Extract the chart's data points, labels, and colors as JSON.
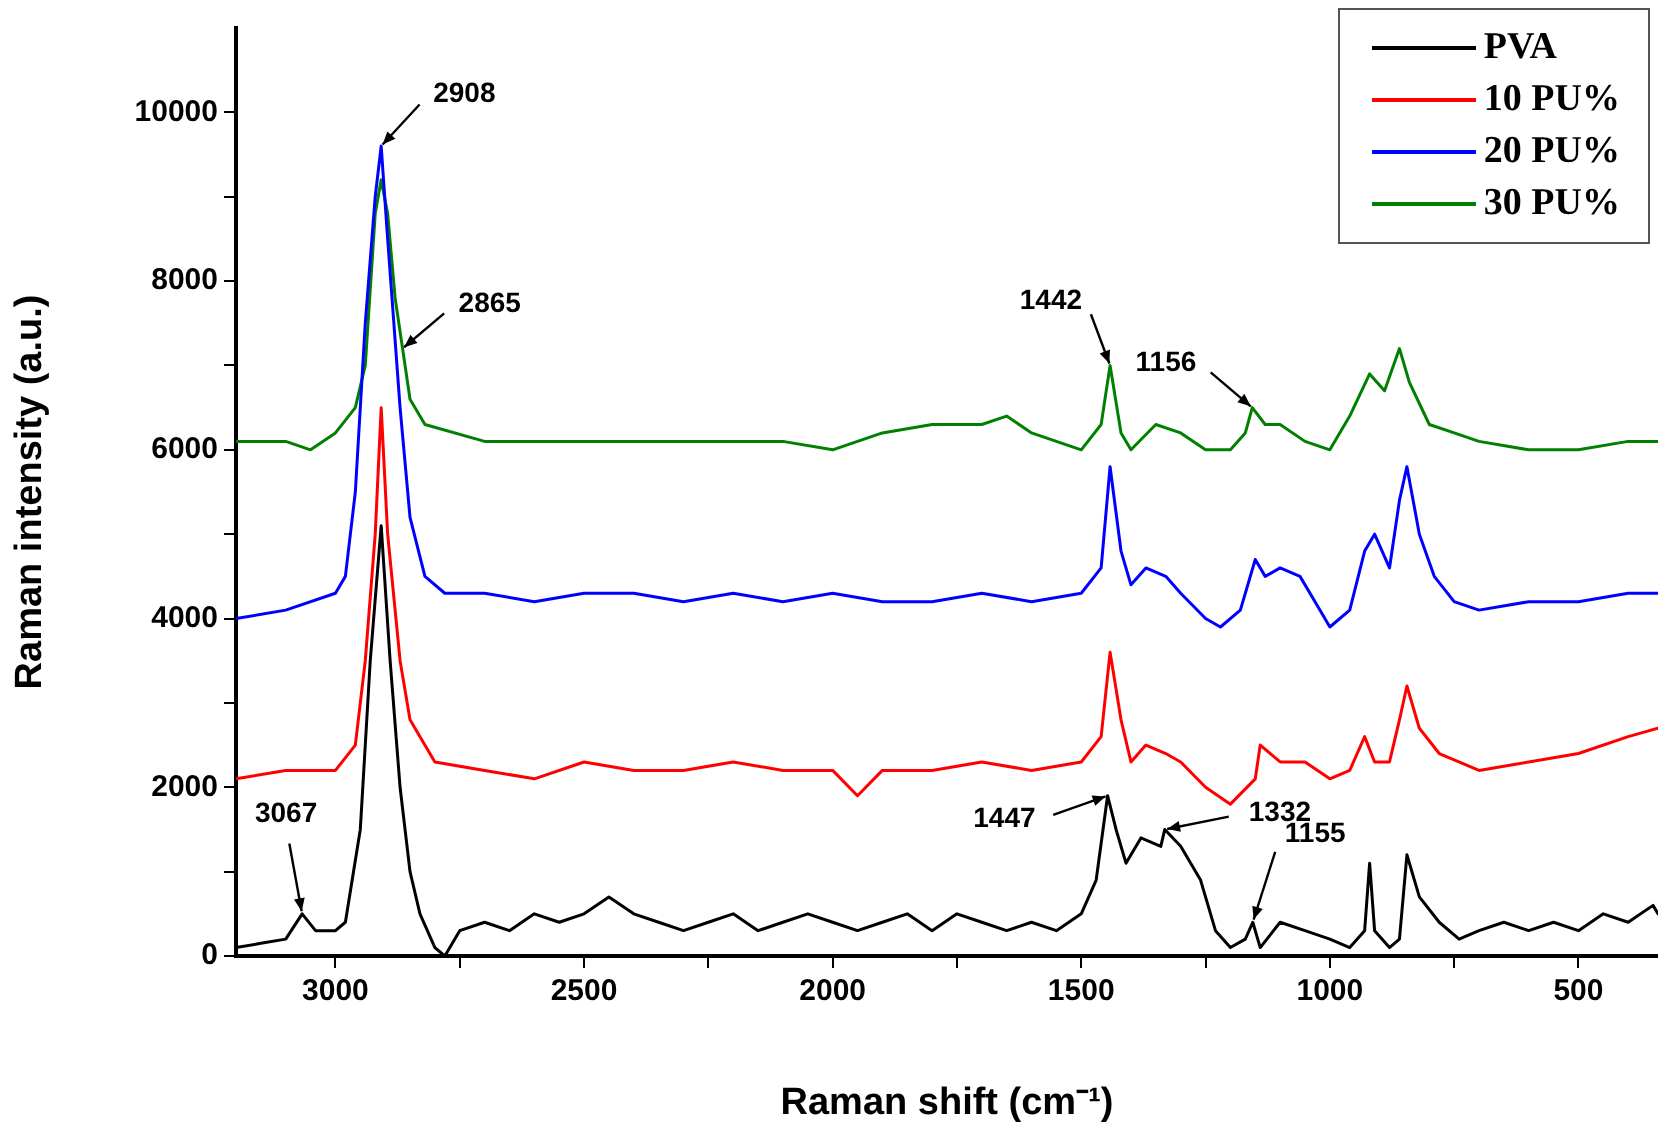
{
  "chart_data": {
    "type": "line",
    "xlabel": "Raman shift (cm⁻¹)",
    "ylabel": "Raman intensity (a.u.)",
    "xlim": [
      3200,
      340
    ],
    "xticks": [
      3000,
      {
        "value": 2750,
        "label": null
      },
      2500,
      {
        "value": 2250,
        "label": null
      },
      2000,
      {
        "value": 1750,
        "label": null
      },
      1500,
      {
        "value": 1250,
        "label": null
      },
      1000,
      {
        "value": 750,
        "label": null
      },
      500
    ],
    "ylim": [
      0,
      11000
    ],
    "yticks": [
      0,
      {
        "value": 1000,
        "label": null
      },
      2000,
      {
        "value": 3000,
        "label": null
      },
      4000,
      {
        "value": 5000,
        "label": null
      },
      6000,
      {
        "value": 7000,
        "label": null
      },
      8000,
      {
        "value": 9000,
        "label": null
      },
      10000
    ],
    "grid": false,
    "legend": "top right",
    "marker": "none",
    "line_style": "solid",
    "series": [
      {
        "name": "PVA",
        "color": "#000000",
        "x": [
          3200,
          3150,
          3100,
          3067,
          3040,
          3000,
          2980,
          2950,
          2930,
          2908,
          2890,
          2870,
          2850,
          2830,
          2800,
          2780,
          2750,
          2700,
          2650,
          2600,
          2550,
          2500,
          2450,
          2400,
          2350,
          2300,
          2250,
          2200,
          2150,
          2100,
          2050,
          2000,
          1950,
          1900,
          1850,
          1800,
          1750,
          1700,
          1650,
          1600,
          1550,
          1500,
          1470,
          1447,
          1430,
          1410,
          1380,
          1340,
          1332,
          1300,
          1260,
          1230,
          1200,
          1170,
          1155,
          1140,
          1100,
          1050,
          1000,
          960,
          930,
          920,
          910,
          880,
          860,
          845,
          820,
          780,
          740,
          700,
          650,
          600,
          550,
          500,
          450,
          400,
          350,
          340
        ],
        "values": [
          100,
          150,
          200,
          500,
          300,
          300,
          400,
          1500,
          3500,
          5100,
          3500,
          2000,
          1000,
          500,
          100,
          0,
          300,
          400,
          300,
          500,
          400,
          500,
          700,
          500,
          400,
          300,
          400,
          500,
          300,
          400,
          500,
          400,
          300,
          400,
          500,
          300,
          500,
          400,
          300,
          400,
          300,
          500,
          900,
          1900,
          1500,
          1100,
          1400,
          1300,
          1500,
          1300,
          900,
          300,
          100,
          200,
          400,
          100,
          400,
          300,
          200,
          100,
          300,
          1100,
          300,
          100,
          200,
          1200,
          700,
          400,
          200,
          300,
          400,
          300,
          400,
          300,
          500,
          400,
          600,
          500
        ]
      },
      {
        "name": "10 PU%",
        "color": "#ff0000",
        "x": [
          3200,
          3100,
          3000,
          2960,
          2940,
          2920,
          2908,
          2895,
          2870,
          2850,
          2800,
          2700,
          2600,
          2500,
          2400,
          2300,
          2200,
          2100,
          2000,
          1950,
          1900,
          1800,
          1700,
          1600,
          1500,
          1460,
          1442,
          1420,
          1400,
          1370,
          1330,
          1300,
          1250,
          1200,
          1150,
          1140,
          1100,
          1050,
          1000,
          960,
          930,
          910,
          880,
          860,
          845,
          820,
          780,
          700,
          600,
          500,
          400,
          340
        ],
        "values": [
          2100,
          2200,
          2200,
          2500,
          3500,
          5000,
          6500,
          5000,
          3500,
          2800,
          2300,
          2200,
          2100,
          2300,
          2200,
          2200,
          2300,
          2200,
          2200,
          1900,
          2200,
          2200,
          2300,
          2200,
          2300,
          2600,
          3600,
          2800,
          2300,
          2500,
          2400,
          2300,
          2000,
          1800,
          2100,
          2500,
          2300,
          2300,
          2100,
          2200,
          2600,
          2300,
          2300,
          2800,
          3200,
          2700,
          2400,
          2200,
          2300,
          2400,
          2600,
          2700
        ]
      },
      {
        "name": "20 PU%",
        "color": "#0000ff",
        "x": [
          3200,
          3100,
          3000,
          2980,
          2960,
          2940,
          2920,
          2908,
          2895,
          2870,
          2850,
          2820,
          2780,
          2700,
          2600,
          2500,
          2400,
          2300,
          2200,
          2100,
          2000,
          1900,
          1800,
          1700,
          1600,
          1500,
          1460,
          1442,
          1420,
          1400,
          1370,
          1330,
          1300,
          1250,
          1220,
          1180,
          1150,
          1130,
          1100,
          1060,
          1020,
          1000,
          960,
          930,
          910,
          880,
          860,
          845,
          820,
          790,
          750,
          700,
          600,
          500,
          400,
          340
        ],
        "values": [
          4000,
          4100,
          4300,
          4500,
          5500,
          7500,
          9000,
          9600,
          8500,
          6500,
          5200,
          4500,
          4300,
          4300,
          4200,
          4300,
          4300,
          4200,
          4300,
          4200,
          4300,
          4200,
          4200,
          4300,
          4200,
          4300,
          4600,
          5800,
          4800,
          4400,
          4600,
          4500,
          4300,
          4000,
          3900,
          4100,
          4700,
          4500,
          4600,
          4500,
          4100,
          3900,
          4100,
          4800,
          5000,
          4600,
          5400,
          5800,
          5000,
          4500,
          4200,
          4100,
          4200,
          4200,
          4300,
          4300
        ]
      },
      {
        "name": "30 PU%",
        "color": "#008000",
        "x": [
          3200,
          3100,
          3050,
          3000,
          2960,
          2940,
          2920,
          2908,
          2895,
          2880,
          2865,
          2850,
          2820,
          2700,
          2600,
          2500,
          2400,
          2300,
          2200,
          2100,
          2000,
          1900,
          1800,
          1700,
          1650,
          1600,
          1500,
          1460,
          1442,
          1420,
          1400,
          1350,
          1300,
          1250,
          1200,
          1170,
          1156,
          1130,
          1100,
          1050,
          1000,
          960,
          920,
          890,
          860,
          840,
          800,
          750,
          700,
          600,
          500,
          400,
          340
        ],
        "values": [
          6100,
          6100,
          6000,
          6200,
          6500,
          7000,
          8800,
          9200,
          8800,
          7800,
          7200,
          6600,
          6300,
          6100,
          6100,
          6100,
          6100,
          6100,
          6100,
          6100,
          6000,
          6200,
          6300,
          6300,
          6400,
          6200,
          6000,
          6300,
          7000,
          6200,
          6000,
          6300,
          6200,
          6000,
          6000,
          6200,
          6500,
          6300,
          6300,
          6100,
          6000,
          6400,
          6900,
          6700,
          7200,
          6800,
          6300,
          6200,
          6100,
          6000,
          6000,
          6100,
          6100
        ]
      }
    ],
    "annotations": [
      {
        "text": "2908",
        "x": 2908,
        "y": 9600
      },
      {
        "text": "2865",
        "x": 2865,
        "y": 7200
      },
      {
        "text": "1442",
        "x": 1442,
        "y": 7000
      },
      {
        "text": "1156",
        "x": 1156,
        "y": 6500
      },
      {
        "text": "3067",
        "x": 3067,
        "y": 500
      },
      {
        "text": "1447",
        "x": 1447,
        "y": 1900
      },
      {
        "text": "1332",
        "x": 1332,
        "y": 1500
      },
      {
        "text": "1155",
        "x": 1155,
        "y": 400
      }
    ]
  }
}
